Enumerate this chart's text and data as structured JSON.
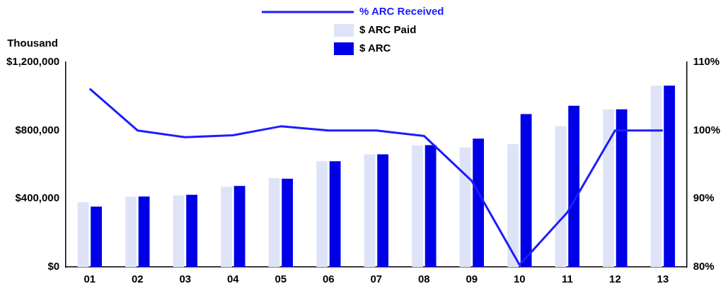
{
  "chart_data": {
    "type": "bar",
    "ylabel": "Thousand",
    "categories": [
      "01",
      "02",
      "03",
      "04",
      "05",
      "06",
      "07",
      "08",
      "09",
      "10",
      "11",
      "12",
      "13"
    ],
    "series": [
      {
        "name": "% ARC Received",
        "type": "line",
        "axis": "y2",
        "color": "#1c1cff",
        "values": [
          106.1,
          100,
          99,
          99.3,
          100.6,
          100,
          100,
          99.2,
          92.6,
          80.3,
          88,
          100,
          100
        ]
      },
      {
        "name": "$ ARC Paid",
        "color": "#dfe3f7",
        "values": [
          380000,
          413000,
          419000,
          470000,
          520000,
          620000,
          660000,
          714000,
          700000,
          720000,
          826000,
          924000,
          1062000
        ]
      },
      {
        "name": "$ ARC",
        "color": "#0000e6",
        "values": [
          354000,
          413000,
          423000,
          475000,
          517000,
          620000,
          660000,
          714000,
          752000,
          896000,
          944000,
          924000,
          1062000
        ]
      }
    ],
    "ylim": [
      0,
      1200000
    ],
    "yticks": [
      {
        "value": 0,
        "label": "$0"
      },
      {
        "value": 400000,
        "label": "$400,000"
      },
      {
        "value": 800000,
        "label": "$800,000"
      },
      {
        "value": 1200000,
        "label": "$1,200,000"
      }
    ],
    "y2lim": [
      80,
      110
    ],
    "y2ticks": [
      {
        "value": 80,
        "label": "80%"
      },
      {
        "value": 90,
        "label": "90%"
      },
      {
        "value": 100,
        "label": "100%"
      },
      {
        "value": 110,
        "label": "110%"
      }
    ],
    "legend": "top",
    "grid": false
  }
}
